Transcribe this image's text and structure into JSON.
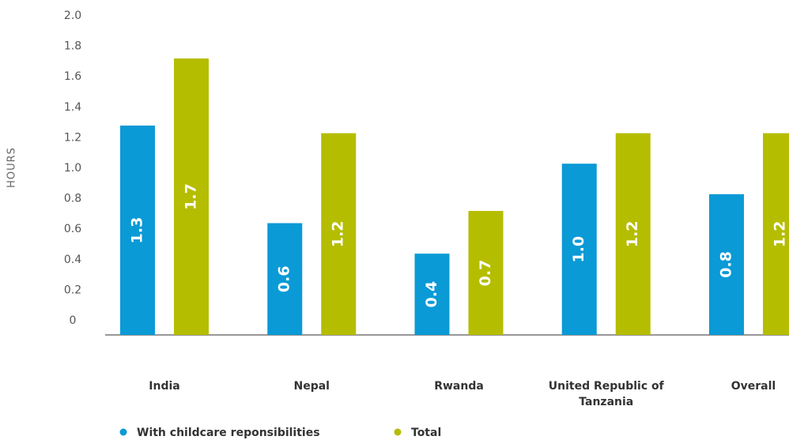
{
  "chart_data": {
    "type": "bar",
    "y_label": "HOURS",
    "categories": [
      "India",
      "Nepal",
      "Rwanda",
      "United Republic of Tanzania",
      "Overall"
    ],
    "series": [
      {
        "name": "With childcare reponsibilities",
        "color": "#0a9ad6",
        "values": [
          1.28,
          0.64,
          0.44,
          1.03,
          0.83
        ],
        "value_labels": [
          "1.3",
          "0.6",
          "0.4",
          "1.0",
          "0.8"
        ]
      },
      {
        "name": "Total",
        "color": "#b5bd00",
        "values": [
          1.72,
          1.23,
          0.72,
          1.23,
          1.23
        ],
        "value_labels": [
          "1.7",
          "1.2",
          "0.7",
          "1.2",
          "1.2"
        ]
      }
    ],
    "ylim": [
      0,
      2
    ],
    "yticks": [
      0,
      0.2,
      0.4,
      0.6,
      0.8,
      {
        "value": 1,
        "label": "1.0"
      },
      1.2,
      1.4,
      1.6,
      1.8,
      {
        "value": 2,
        "label": "2.0"
      }
    ],
    "grid": false
  }
}
